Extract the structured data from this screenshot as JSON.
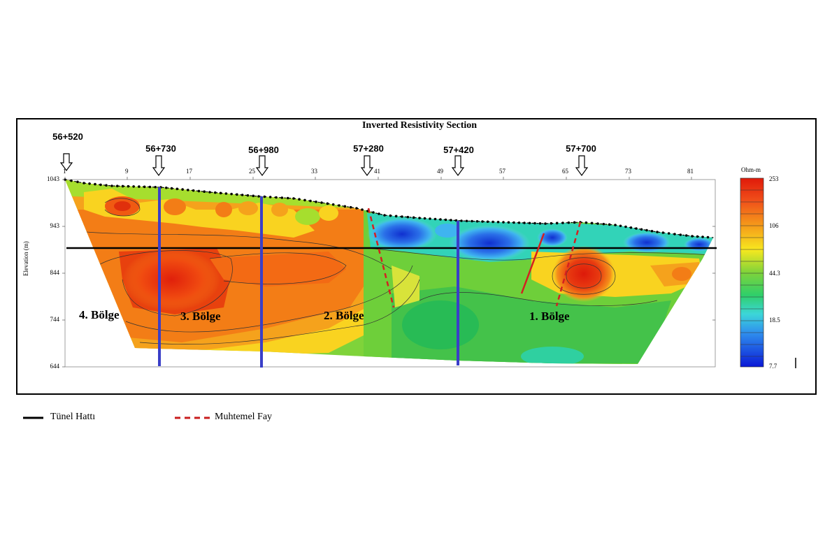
{
  "chart_data": {
    "type": "heatmap",
    "title": "Inverted Resistivity Section",
    "ylabel": "Elevation (m)",
    "x_ticks": [
      "1",
      "9",
      "17",
      "25",
      "33",
      "41",
      "49",
      "57",
      "65",
      "73",
      "81"
    ],
    "y_ticks": [
      "1043",
      "943",
      "844",
      "744",
      "644"
    ],
    "colorbar": {
      "unit": "Ohm-m",
      "labels": [
        "253",
        "106",
        "44.3",
        "18.5",
        "7.7"
      ]
    },
    "stations": [
      "56+520",
      "56+730",
      "56+980",
      "57+280",
      "57+420",
      "57+700"
    ],
    "zones": [
      "4. Bölge",
      "3. Bölge",
      "2. Bölge",
      "1. Bölge"
    ],
    "legend": {
      "tunnel": "Tünel Hattı",
      "fault": "Muhtemel Fay"
    }
  }
}
